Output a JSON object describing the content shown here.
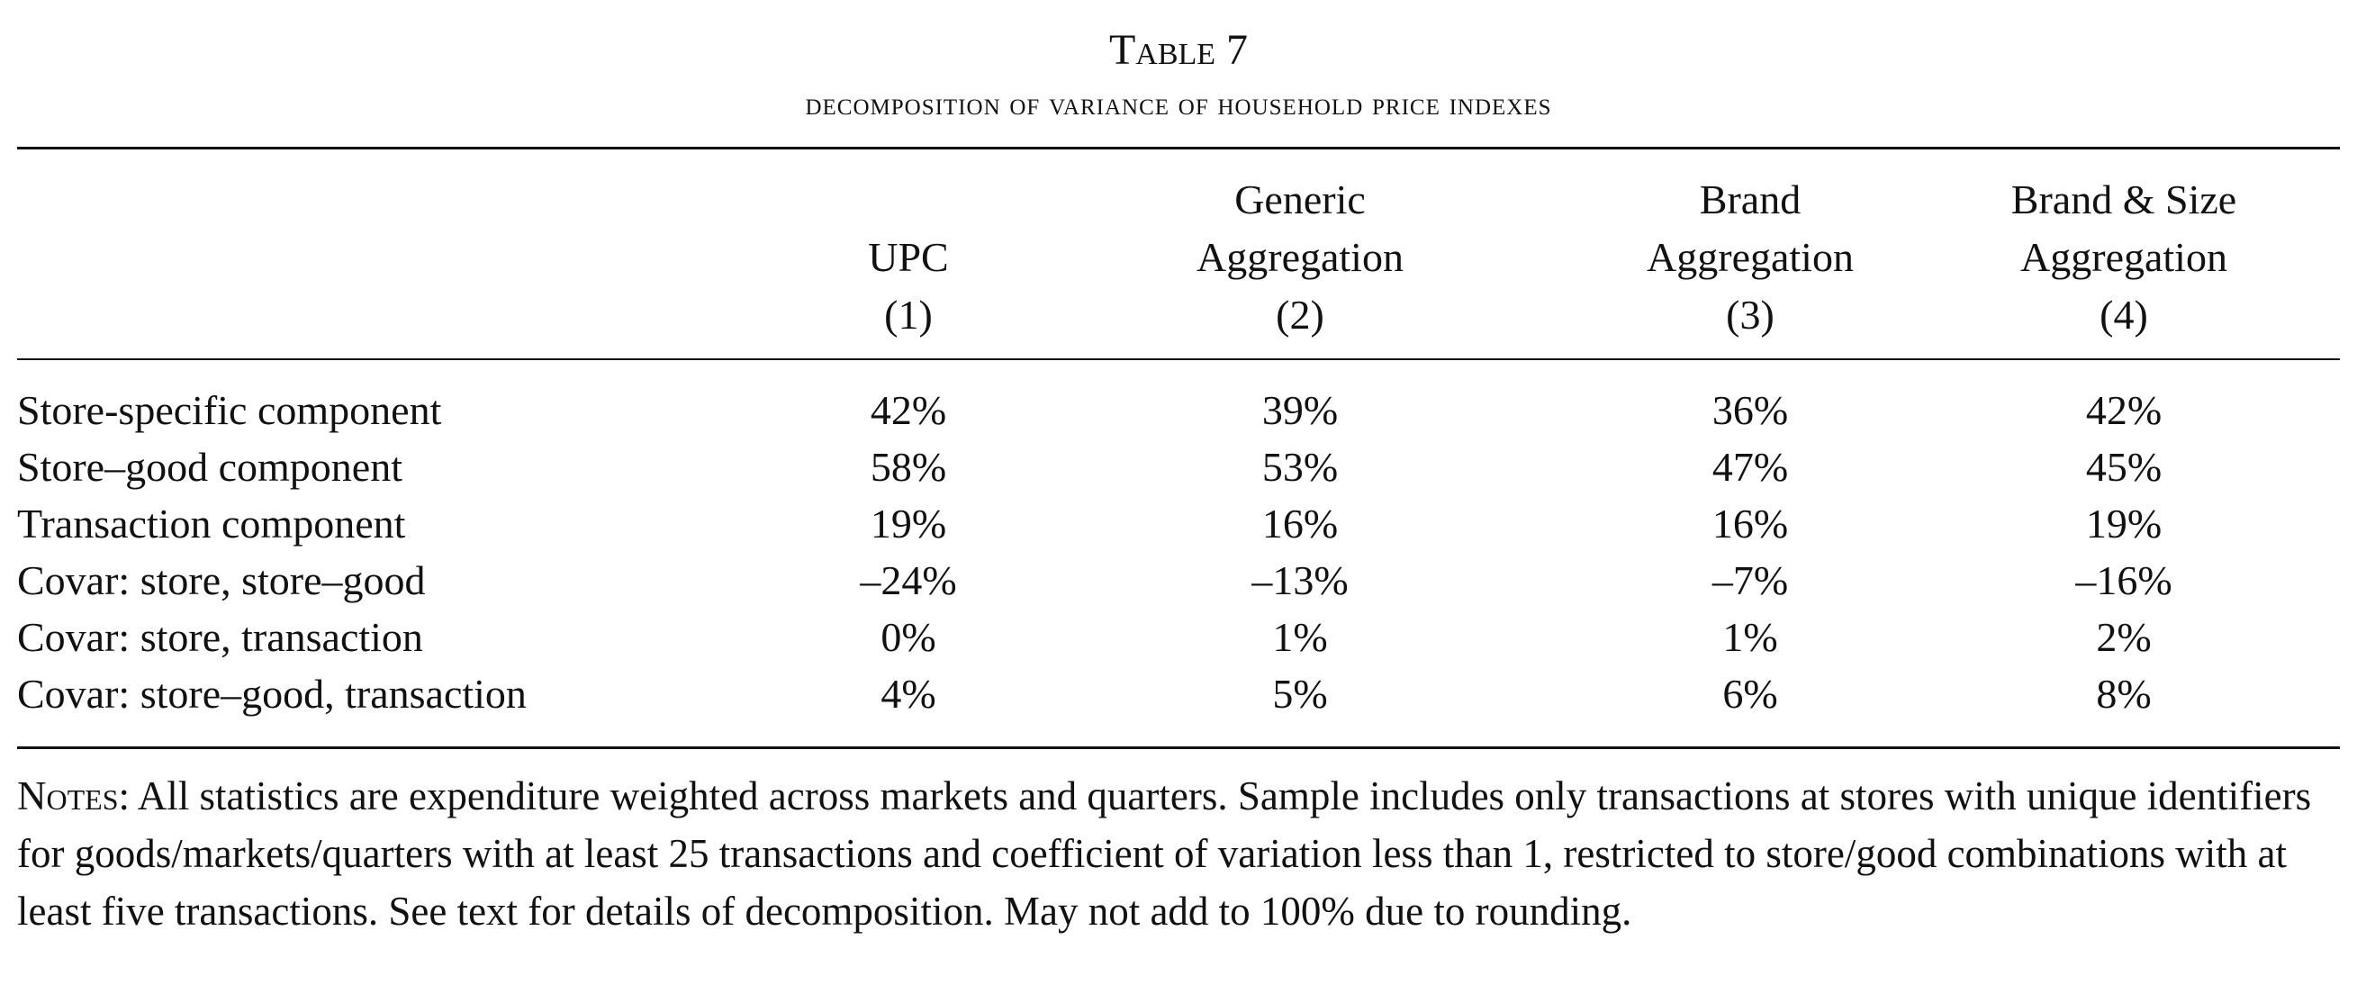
{
  "table": {
    "title": "Table 7",
    "subtitle": "decomposition of variance of household price indexes",
    "columns": [
      {
        "line1": "",
        "line2": "UPC",
        "number": "(1)"
      },
      {
        "line1": "Generic",
        "line2": "Aggregation",
        "number": "(2)"
      },
      {
        "line1": "Brand",
        "line2": "Aggregation",
        "number": "(3)"
      },
      {
        "line1": "Brand & Size",
        "line2": "Aggregation",
        "number": "(4)"
      }
    ],
    "rows": [
      {
        "label": "Store-specific component",
        "values": [
          "42%",
          "39%",
          "36%",
          "42%"
        ]
      },
      {
        "label": "Store–good component",
        "values": [
          "58%",
          "53%",
          "47%",
          "45%"
        ]
      },
      {
        "label": "Transaction component",
        "values": [
          "19%",
          "16%",
          "16%",
          "19%"
        ]
      },
      {
        "label": "Covar: store, store–good",
        "values": [
          "–24%",
          "–13%",
          "–7%",
          "–16%"
        ]
      },
      {
        "label": "Covar: store, transaction",
        "values": [
          "0%",
          "1%",
          "1%",
          "2%"
        ]
      },
      {
        "label": "Covar: store–good, transaction",
        "values": [
          "4%",
          "5%",
          "6%",
          "8%"
        ]
      }
    ],
    "notes_label": "Notes:",
    "notes_text": " All statistics are expenditure weighted across markets and quarters. Sample includes only transactions at stores with unique identifiers for goods/markets/quarters with at least 25 transactions and coefficient of variation less than 1, restricted to store/good combinations with at least five transactions. See text for details of decomposition. May not add to 100% due to rounding."
  }
}
